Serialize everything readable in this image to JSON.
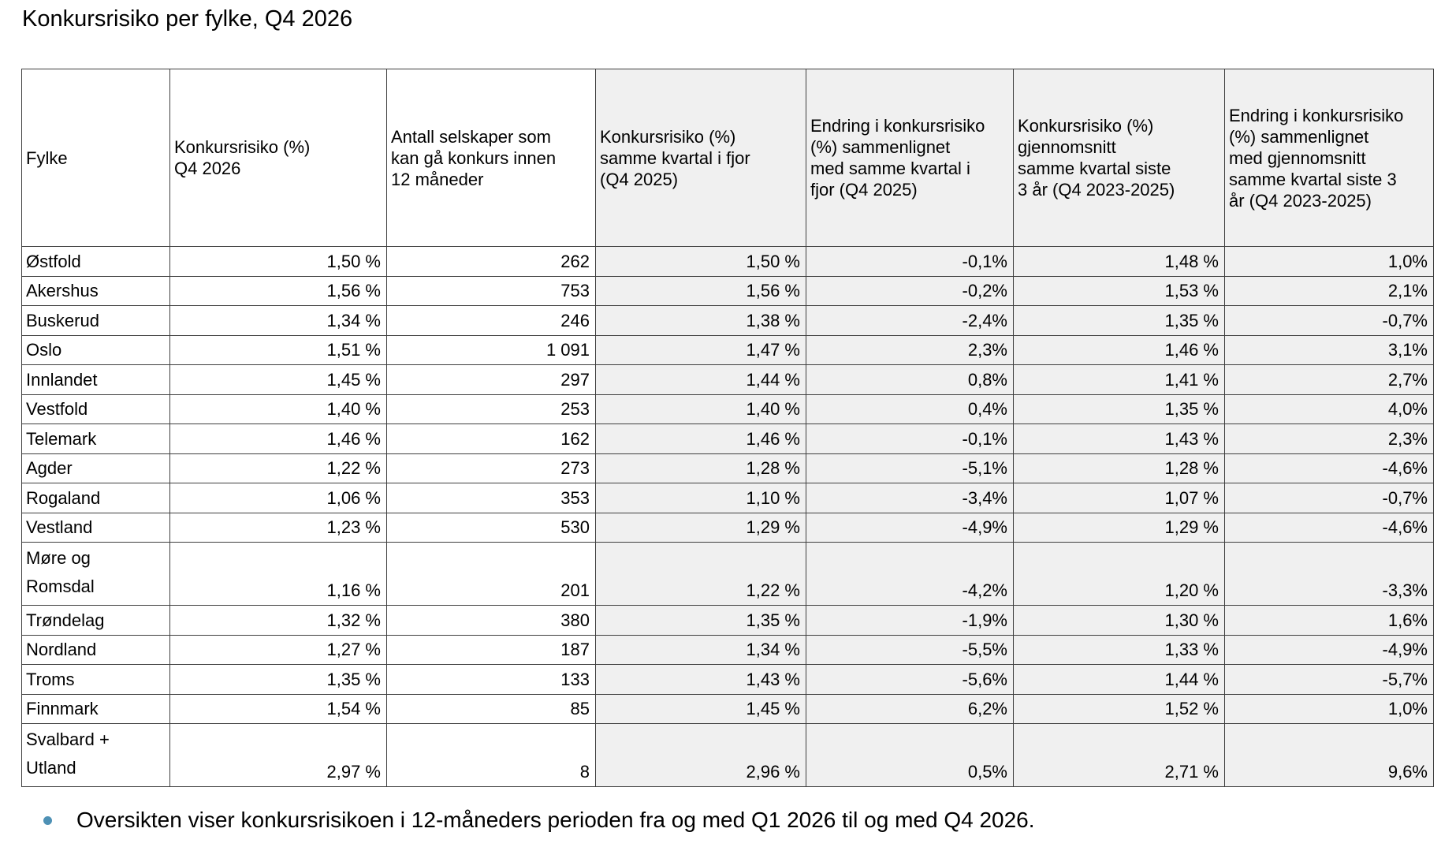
{
  "title": "Konkursrisiko per fylke, Q4 2026",
  "chart_data": {
    "type": "table",
    "title": "Konkursrisiko per fylke, Q4 2026",
    "columns": [
      "Fylke",
      "Konkursrisiko (%) Q4 2026",
      "Antall selskaper som kan gå konkurs innen 12 måneder",
      "Konkursrisiko (%) samme kvartal i fjor (Q4 2025)",
      "Endring i konkursrisiko (%) sammenlignet med samme kvartal i fjor (Q4 2025)",
      "Konkursrisiko (%) gjennomsnitt samme kvartal siste 3 år (Q4 2023-2025)",
      "Endring i konkursrisiko (%) sammenlignet med gjennomsnitt samme kvartal siste 3 år (Q4 2023-2025)"
    ],
    "rows": [
      [
        "Østfold",
        "1,50 %",
        "262",
        "1,50 %",
        "-0,1%",
        "1,48 %",
        "1,0%"
      ],
      [
        "Akershus",
        "1,56 %",
        "753",
        "1,56 %",
        "-0,2%",
        "1,53 %",
        "2,1%"
      ],
      [
        "Buskerud",
        "1,34 %",
        "246",
        "1,38 %",
        "-2,4%",
        "1,35 %",
        "-0,7%"
      ],
      [
        "Oslo",
        "1,51 %",
        "1 091",
        "1,47 %",
        "2,3%",
        "1,46 %",
        "3,1%"
      ],
      [
        "Innlandet",
        "1,45 %",
        "297",
        "1,44 %",
        "0,8%",
        "1,41 %",
        "2,7%"
      ],
      [
        "Vestfold",
        "1,40 %",
        "253",
        "1,40 %",
        "0,4%",
        "1,35 %",
        "4,0%"
      ],
      [
        "Telemark",
        "1,46 %",
        "162",
        "1,46 %",
        "-0,1%",
        "1,43 %",
        "2,3%"
      ],
      [
        "Agder",
        "1,22 %",
        "273",
        "1,28 %",
        "-5,1%",
        "1,28 %",
        "-4,6%"
      ],
      [
        "Rogaland",
        "1,06 %",
        "353",
        "1,10 %",
        "-3,4%",
        "1,07 %",
        "-0,7%"
      ],
      [
        "Vestland",
        "1,23 %",
        "530",
        "1,29 %",
        "-4,9%",
        "1,29 %",
        "-4,6%"
      ],
      [
        "Møre og Romsdal",
        "1,16 %",
        "201",
        "1,22 %",
        "-4,2%",
        "1,20 %",
        "-3,3%"
      ],
      [
        "Trøndelag",
        "1,32 %",
        "380",
        "1,35 %",
        "-1,9%",
        "1,30 %",
        "1,6%"
      ],
      [
        "Nordland",
        "1,27 %",
        "187",
        "1,34 %",
        "-5,5%",
        "1,33 %",
        "-4,9%"
      ],
      [
        "Troms",
        "1,35 %",
        "133",
        "1,43 %",
        "-5,6%",
        "1,44 %",
        "-5,7%"
      ],
      [
        "Finnmark",
        "1,54 %",
        "85",
        "1,45 %",
        "6,2%",
        "1,52 %",
        "1,0%"
      ],
      [
        "Svalbard + Utland",
        "2,97 %",
        "8",
        "2,96 %",
        "0,5%",
        "2,71 %",
        "9,6%"
      ]
    ],
    "shaded_column_indexes": [
      3,
      4,
      5,
      6
    ],
    "tall_row_labels": [
      "Møre og Romsdal",
      "Svalbard + Utland"
    ]
  },
  "footer": {
    "bullet_text": "Oversikten viser konkursrisikoen i 12-måneders perioden fra og med Q1 2026 til og med Q4 2026."
  },
  "colors": {
    "column_shading": "#f0f0f0",
    "bullet": "#4e91b5",
    "border": "#3f3f3f",
    "text": "#000000",
    "background": "#ffffff"
  }
}
